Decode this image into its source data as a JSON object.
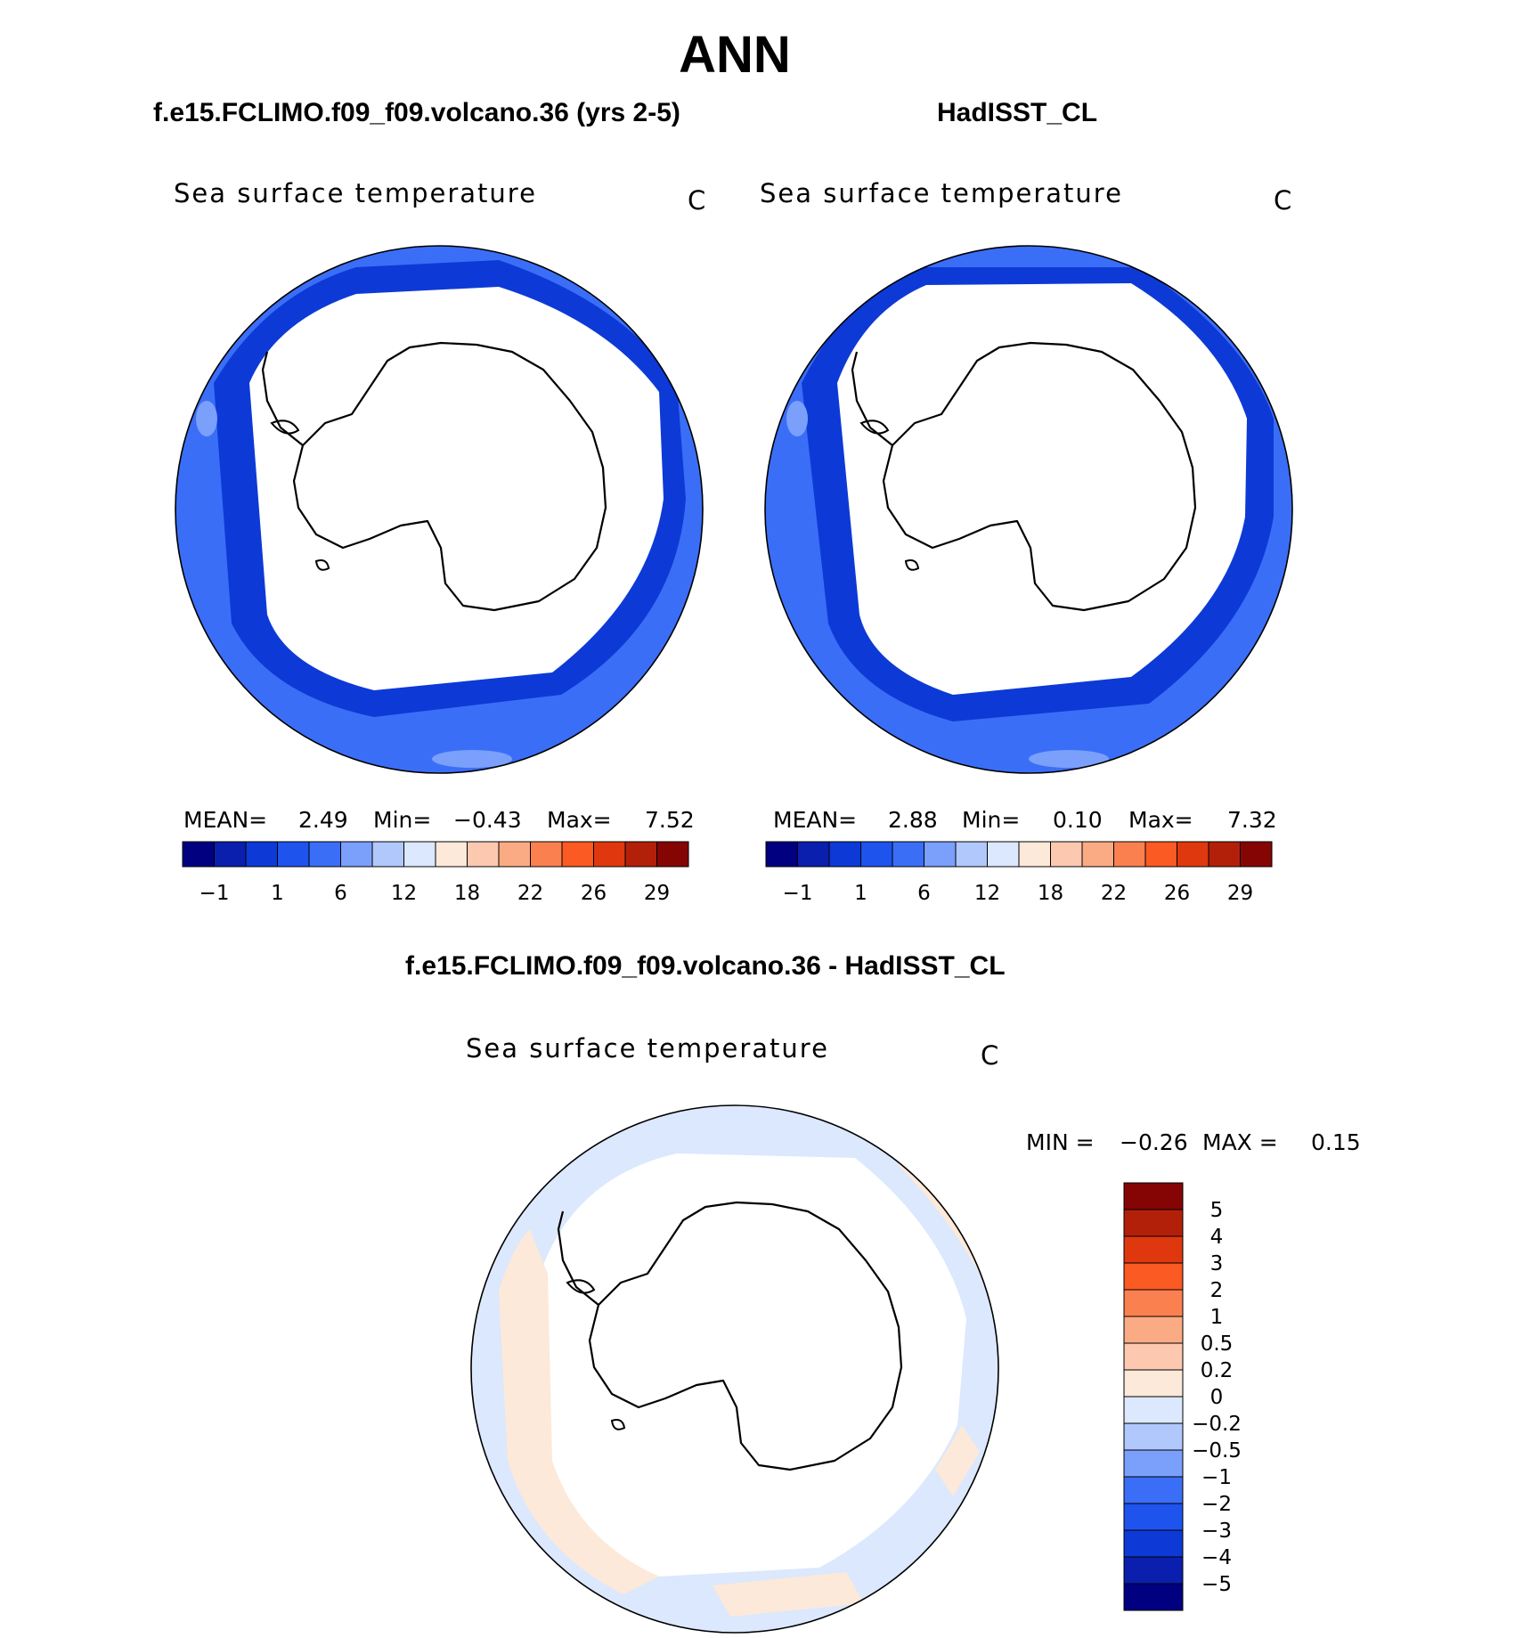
{
  "title": "ANN",
  "panels": [
    {
      "title": "f.e15.FCLIMO.f09_f09.volcano.36 (yrs 2-5)",
      "field": "Sea surface temperature",
      "unit": "C",
      "stats": {
        "mean_label": "MEAN=",
        "mean": "2.49",
        "min_label": "Min=",
        "min": "−0.43",
        "max_label": "Max=",
        "max": "7.52"
      }
    },
    {
      "title": "HadISST_CL",
      "field": "Sea surface temperature",
      "unit": "C",
      "stats": {
        "mean_label": "MEAN=",
        "mean": "2.88",
        "min_label": "Min=",
        "min": "0.10",
        "max_label": "Max=",
        "max": "7.32"
      }
    },
    {
      "title": "f.e15.FCLIMO.f09_f09.volcano.36 - HadISST_CL",
      "field": "Sea surface temperature",
      "unit": "C",
      "stats": {
        "min_label": "MIN =",
        "min": "−0.26",
        "max_label": "MAX =",
        "max": "0.15"
      }
    }
  ],
  "colorbar_abs": {
    "colors": [
      "#000080",
      "#0a1fae",
      "#0d3ad6",
      "#1e53ee",
      "#3b6ef7",
      "#7aa0fb",
      "#b0c8fc",
      "#dbe8fd",
      "#fde9d9",
      "#fcc8b0",
      "#fbab84",
      "#fb8050",
      "#fb5a22",
      "#e0380e",
      "#b3200a",
      "#850505"
    ],
    "labels": [
      "−1",
      "1",
      "6",
      "12",
      "18",
      "22",
      "26",
      "29"
    ]
  },
  "colorbar_diff": {
    "colors": [
      "#000080",
      "#0a1fae",
      "#0d3ad6",
      "#1e53ee",
      "#3b6ef7",
      "#7aa0fb",
      "#b0c8fc",
      "#dbe8fd",
      "#fde9d9",
      "#fcc8b0",
      "#fbab84",
      "#fb8050",
      "#fb5a22",
      "#e0380e",
      "#b3200a",
      "#850505"
    ],
    "labels": [
      "−5",
      "−4",
      "−3",
      "−2",
      "−1",
      "−0.5",
      "−0.2",
      "0",
      "0.2",
      "0.5",
      "1",
      "2",
      "3",
      "4",
      "5"
    ]
  },
  "map_colors": {
    "deep": "#0d3ad6",
    "mid": "#1e53ee",
    "outer": "#3b6ef7",
    "light": "#7aa0fb",
    "diff_neg": "#dbe8fd",
    "diff_pos": "#fde9d9"
  }
}
